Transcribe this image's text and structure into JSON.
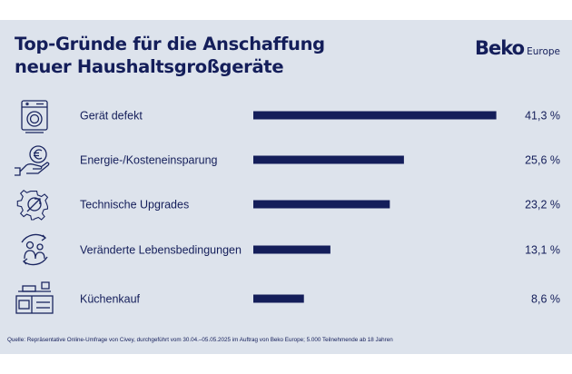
{
  "title_line1": "Top-Gründe für die Anschaffung",
  "title_line2": "neuer Haushaltsgroßgeräte",
  "logo": {
    "main": "Beko",
    "sub": "Europe"
  },
  "source": "Quelle: Repräsentative Online-Umfrage von Civey, durchgeführt vom 30.04.–05.05.2025 im Auftrag von Beko Europe; 5.000 Teilnehmende ab 18 Jahren",
  "colors": {
    "panel": "#dde3ec",
    "bar": "#141e5a",
    "text": "#141e5a"
  },
  "chart_data": {
    "type": "bar",
    "orientation": "horizontal",
    "unit": "%",
    "xlim": [
      0,
      50
    ],
    "grid": false,
    "categories": [
      "Gerät defekt",
      "Energie-/Kosteneinsparung",
      "Technische Upgrades",
      "Veränderte Lebensbedingungen",
      "Küchenkauf"
    ],
    "values": [
      41.3,
      25.6,
      23.2,
      13.1,
      8.6
    ],
    "value_labels": [
      "41,3 %",
      "25,6 %",
      "23,2 %",
      "13,1 %",
      "8,6 %"
    ],
    "icons": [
      "washing-machine-icon",
      "euro-coin-hand-icon",
      "gear-upgrade-icon",
      "people-cycle-icon",
      "kitchen-icon"
    ]
  }
}
